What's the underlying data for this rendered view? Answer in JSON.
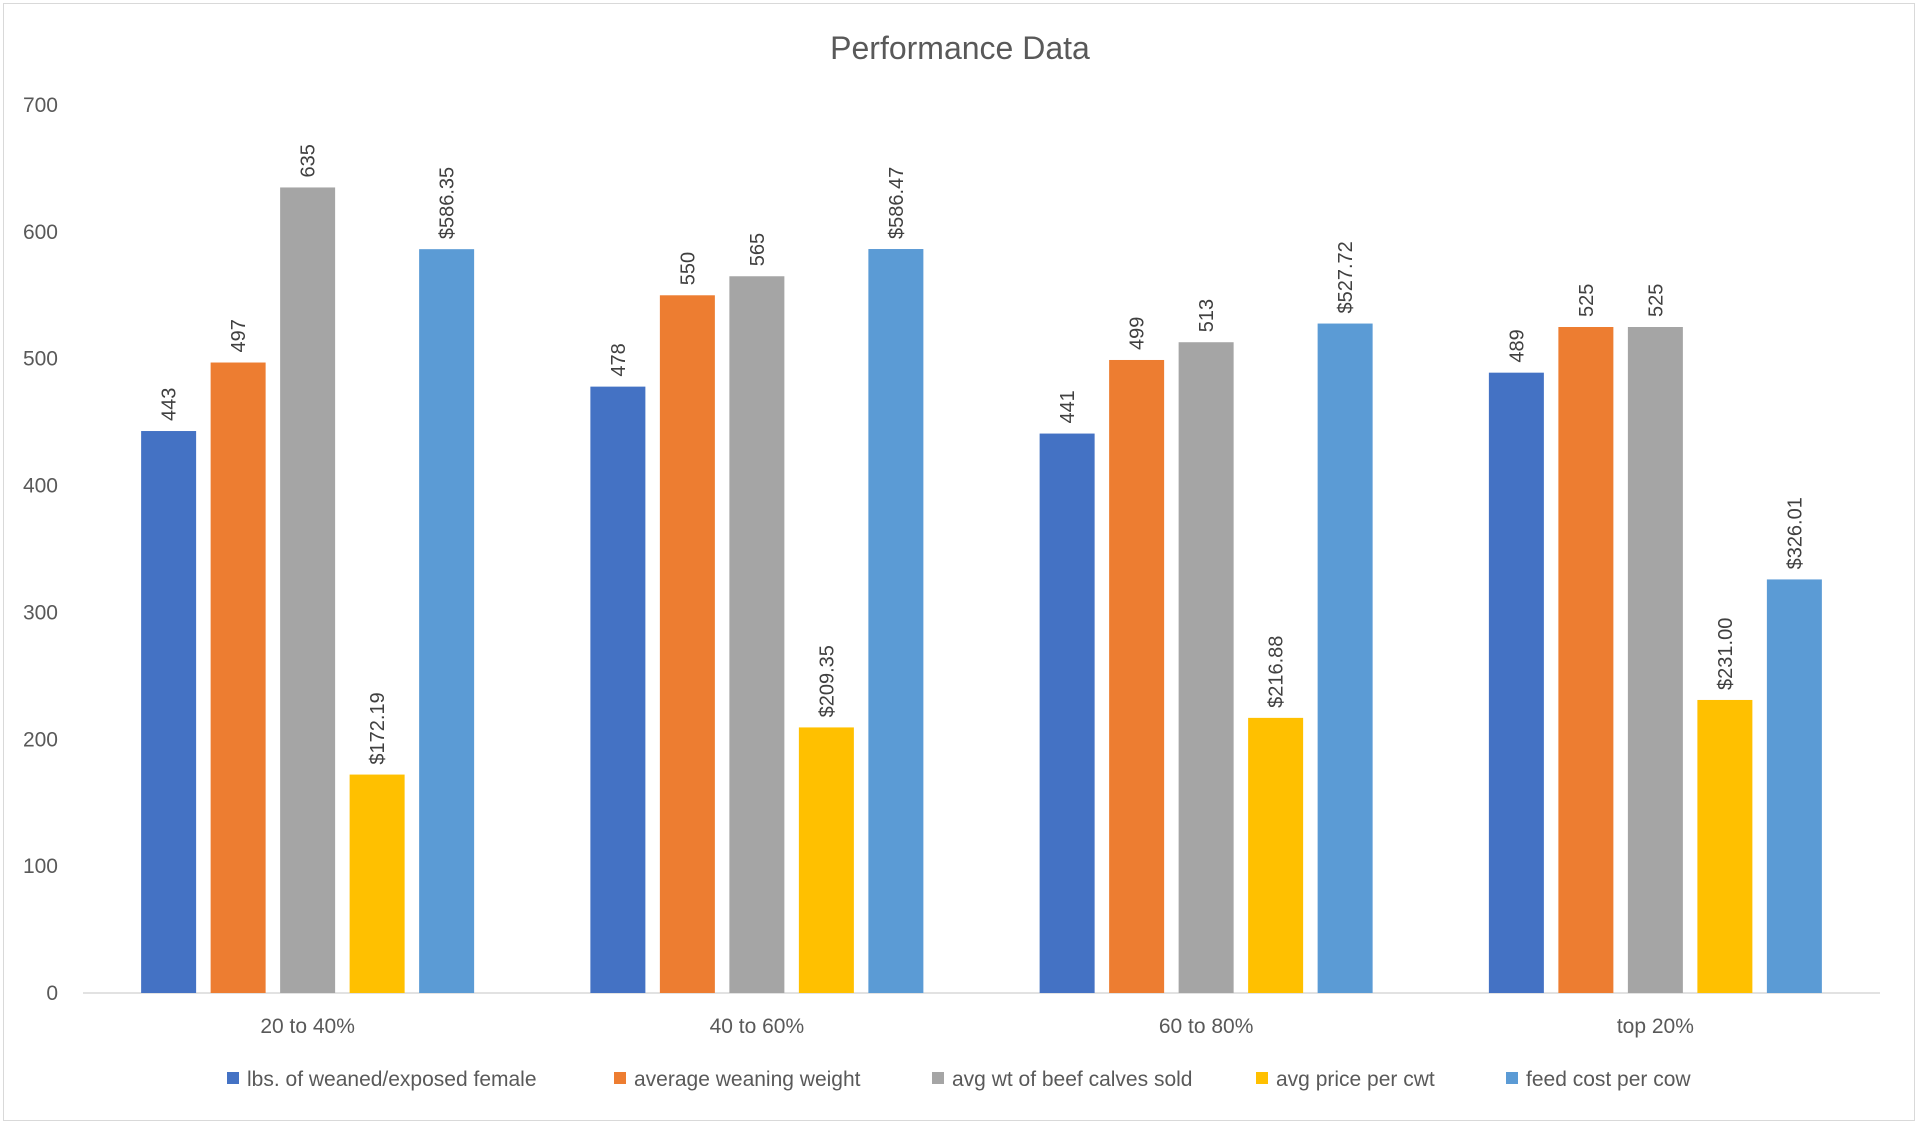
{
  "chart_data": {
    "type": "bar",
    "title": "Performance Data",
    "xlabel": "",
    "ylabel": "",
    "ylim": [
      0,
      700
    ],
    "yticks": [
      0,
      100,
      200,
      300,
      400,
      500,
      600,
      700
    ],
    "grid": false,
    "legend_position": "bottom",
    "categories": [
      "20 to 40%",
      "40 to 60%",
      "60 to 80%",
      "top 20%"
    ],
    "series": [
      {
        "name": "lbs. of weaned/exposed female",
        "color": "#4472C4",
        "values": [
          443,
          478,
          441,
          489
        ],
        "labels": [
          "443",
          "478",
          "441",
          "489"
        ]
      },
      {
        "name": "average weaning weight",
        "color": "#ED7D31",
        "values": [
          497,
          550,
          499,
          525
        ],
        "labels": [
          "497",
          "550",
          "499",
          "525"
        ]
      },
      {
        "name": "avg wt of beef calves sold",
        "color": "#A5A5A5",
        "values": [
          635,
          565,
          513,
          525
        ],
        "labels": [
          "635",
          "565",
          "513",
          "525"
        ]
      },
      {
        "name": "avg price per cwt",
        "color": "#FFC000",
        "values": [
          172.19,
          209.35,
          216.88,
          231.0
        ],
        "labels": [
          "$172.19",
          "$209.35",
          "$216.88",
          "$231.00"
        ]
      },
      {
        "name": "feed cost per cow",
        "color": "#5B9BD5",
        "values": [
          586.35,
          586.47,
          527.72,
          326.01
        ],
        "labels": [
          "$586.35",
          "$586.47",
          "$527.72",
          "$326.01"
        ]
      }
    ]
  }
}
